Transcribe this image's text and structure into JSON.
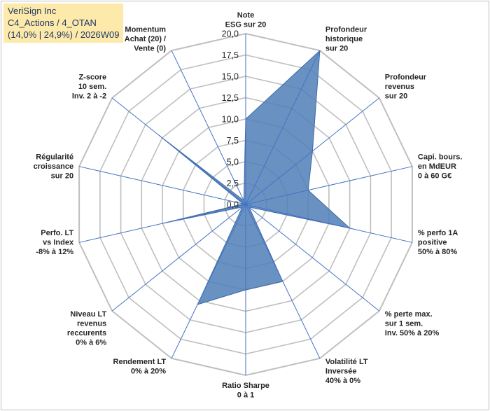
{
  "title_box": {
    "line1": "VeriSign Inc",
    "line2": "C4_Actions / 4_OTAN",
    "line3": "(14,0% | 24,9%) / 2026W09"
  },
  "chart_data": {
    "type": "radar",
    "rmin": 0,
    "rmax": 20,
    "ticks": [
      "0,0",
      "2,5",
      "5,0",
      "7,5",
      "10,0",
      "12,5",
      "15,0",
      "17,5",
      "20,0"
    ],
    "axes": [
      {
        "label": [
          "Note",
          "ESG sur 20"
        ],
        "value": 10
      },
      {
        "label": [
          "Profondeur",
          "historique",
          "sur 20"
        ],
        "value": 20
      },
      {
        "label": [
          "Profondeur",
          "revenus",
          "sur 20"
        ],
        "value": 10
      },
      {
        "label": [
          "Capi. bours.",
          "en MdEUR",
          "0 à 60 G€"
        ],
        "value": 7.5
      },
      {
        "label": [
          "% perfo 1A",
          "positive",
          "50% à 80%"
        ],
        "value": 12.5
      },
      {
        "label": [
          "% perte max.",
          "sur 1 sem.",
          "Inv. 50% à 20%"
        ],
        "value": 0.5
      },
      {
        "label": [
          "Volatilité LT",
          "Inversée",
          "40% à 0%"
        ],
        "value": 10
      },
      {
        "label": [
          "Ratio Sharpe",
          "0 à 1"
        ],
        "value": 10
      },
      {
        "label": [
          "Rendement LT",
          "0% à 20%"
        ],
        "value": 13
      },
      {
        "label": [
          "Niveau LT",
          "revenus",
          "reccurents",
          "0% à 6%"
        ],
        "value": 0.5
      },
      {
        "label": [
          "Perfo. LT",
          "vs Index",
          "-8% à 12%"
        ],
        "value": 10
      },
      {
        "label": [
          "Régularité",
          "croissance",
          "sur 20"
        ],
        "value": 0.3
      },
      {
        "label": [
          "Z-score",
          "10 sem.",
          "Inv. 2 à -2"
        ],
        "value": 13
      },
      {
        "label": [
          "Momentum",
          "Achat (20) /",
          "Vente (0)"
        ],
        "value": 0.5
      }
    ],
    "colors": {
      "fill": "#4f7fb8",
      "spoke": "#4472c4",
      "grid": "#bfbfbf"
    }
  }
}
